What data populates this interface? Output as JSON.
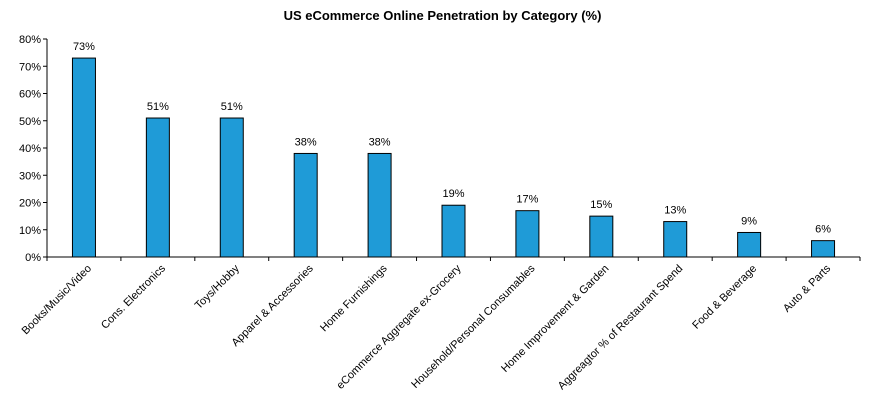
{
  "chart_data": {
    "type": "bar",
    "title": "US eCommerce Online Penetration by Category (%)",
    "categories": [
      "Books/Music/Video",
      "Cons. Electronics",
      "Toys/Hobby",
      "Apparel & Accessories",
      "Home Furnishings",
      "eCommerce Aggregate ex-Grocery",
      "Household/Personal Consumables",
      "Home Improvement & Garden",
      "Aggreagtor % of Restaurant Spend",
      "Food & Beverage",
      "Auto & Parts"
    ],
    "values": [
      73,
      51,
      51,
      38,
      38,
      19,
      17,
      15,
      13,
      9,
      6
    ],
    "data_labels": [
      "73%",
      "51%",
      "51%",
      "38%",
      "38%",
      "19%",
      "17%",
      "15%",
      "13%",
      "9%",
      "6%"
    ],
    "y_ticks": [
      "0%",
      "10%",
      "20%",
      "30%",
      "40%",
      "50%",
      "60%",
      "70%",
      "80%"
    ],
    "ylim": [
      0,
      80
    ],
    "bar_color": "#1f9bd7",
    "grid": false,
    "legend": "none"
  }
}
